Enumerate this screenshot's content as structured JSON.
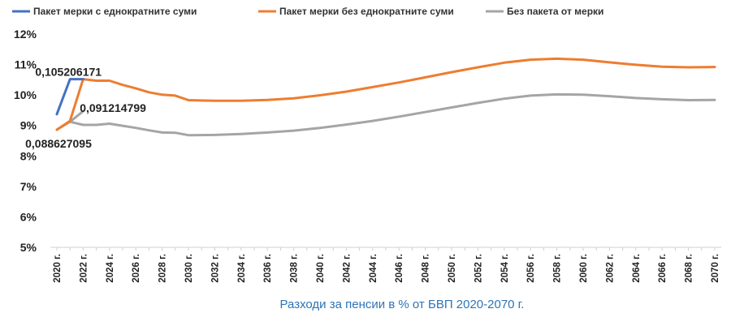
{
  "chart_data": {
    "type": "line",
    "title": "Разходи за пенсии в % от БВП 2020-2070 г.",
    "xlabel": "",
    "ylabel": "",
    "ylim": [
      0.05,
      0.12
    ],
    "y_ticks": [
      "5%",
      "6%",
      "7%",
      "8%",
      "9%",
      "10%",
      "11%",
      "12%"
    ],
    "y_tick_values": [
      0.05,
      0.06,
      0.07,
      0.08,
      0.09,
      0.1,
      0.11,
      0.12
    ],
    "x_tick_labels": [
      "2020 г.",
      "2022 г.",
      "2024 г.",
      "2026 г.",
      "2028 г.",
      "2030 г.",
      "2032 г.",
      "2034 г.",
      "2036 г.",
      "2038 г.",
      "2040 г.",
      "2042 г.",
      "2044 г.",
      "2046 г.",
      "2048 г.",
      "2050 г.",
      "2052 г.",
      "2054 г.",
      "2056 г.",
      "2058 г.",
      "2060 г.",
      "2062 г.",
      "2064 г.",
      "2066 г.",
      "2068 г.",
      "2070 г."
    ],
    "x_tick_years": [
      2020,
      2022,
      2024,
      2026,
      2028,
      2030,
      2032,
      2034,
      2036,
      2038,
      2040,
      2042,
      2044,
      2046,
      2048,
      2050,
      2052,
      2054,
      2056,
      2058,
      2060,
      2062,
      2064,
      2066,
      2068,
      2070
    ],
    "grid": false,
    "legend_position": "top",
    "series": [
      {
        "name": "Пакет мерки с еднократните суми",
        "color": "#4472c4",
        "x": [
          2020,
          2021,
          2022
        ],
        "y": [
          0.0937,
          0.105206171,
          0.1052
        ]
      },
      {
        "name": "Пакет мерки без еднократните суми",
        "color": "#ed7d31",
        "x": [
          2020,
          2021,
          2022,
          2023,
          2024,
          2025,
          2026,
          2027,
          2028,
          2029,
          2030,
          2032,
          2034,
          2036,
          2038,
          2040,
          2042,
          2044,
          2046,
          2048,
          2050,
          2052,
          2054,
          2056,
          2058,
          2060,
          2062,
          2064,
          2066,
          2068,
          2070
        ],
        "y": [
          0.0886,
          0.0915,
          0.1052,
          0.1047,
          0.1047,
          0.1033,
          0.1022,
          0.1009,
          0.1001,
          0.0998,
          0.0983,
          0.0981,
          0.0981,
          0.0984,
          0.0989,
          0.0999,
          0.1011,
          0.1026,
          0.1041,
          0.1058,
          0.1075,
          0.1091,
          0.1106,
          0.1116,
          0.1119,
          0.1116,
          0.1107,
          0.1099,
          0.1093,
          0.1091,
          0.1092
        ]
      },
      {
        "name": "Без пакета от мерки",
        "color": "#a5a5a5",
        "x": [
          2020,
          2021,
          2022,
          2023,
          2024,
          2025,
          2026,
          2027,
          2028,
          2029,
          2030,
          2032,
          2034,
          2036,
          2038,
          2040,
          2042,
          2044,
          2046,
          2048,
          2050,
          2052,
          2054,
          2056,
          2058,
          2060,
          2062,
          2064,
          2066,
          2068,
          2070
        ],
        "y": [
          0.088627095,
          0.091214799,
          0.0902,
          0.0902,
          0.0906,
          0.0899,
          0.0892,
          0.0884,
          0.0877,
          0.0876,
          0.0868,
          0.0869,
          0.0872,
          0.0877,
          0.0883,
          0.0892,
          0.0903,
          0.0915,
          0.0929,
          0.0944,
          0.0959,
          0.0974,
          0.0988,
          0.0998,
          0.1002,
          0.1001,
          0.0996,
          0.099,
          0.0986,
          0.0983,
          0.0984
        ]
      },
      {
        "name": "",
        "color": "#a5a5a5",
        "x": [
          2021,
          2022
        ],
        "y": [
          0.091214799,
          0.0947
        ]
      }
    ],
    "annotations": [
      {
        "text": "0,105206171",
        "x": 2021,
        "y": 0.105206171
      },
      {
        "text": "0,091214799",
        "x": 2021,
        "y": 0.091214799
      },
      {
        "text": "0,088627095",
        "x": 2020,
        "y": 0.088627095
      }
    ]
  }
}
